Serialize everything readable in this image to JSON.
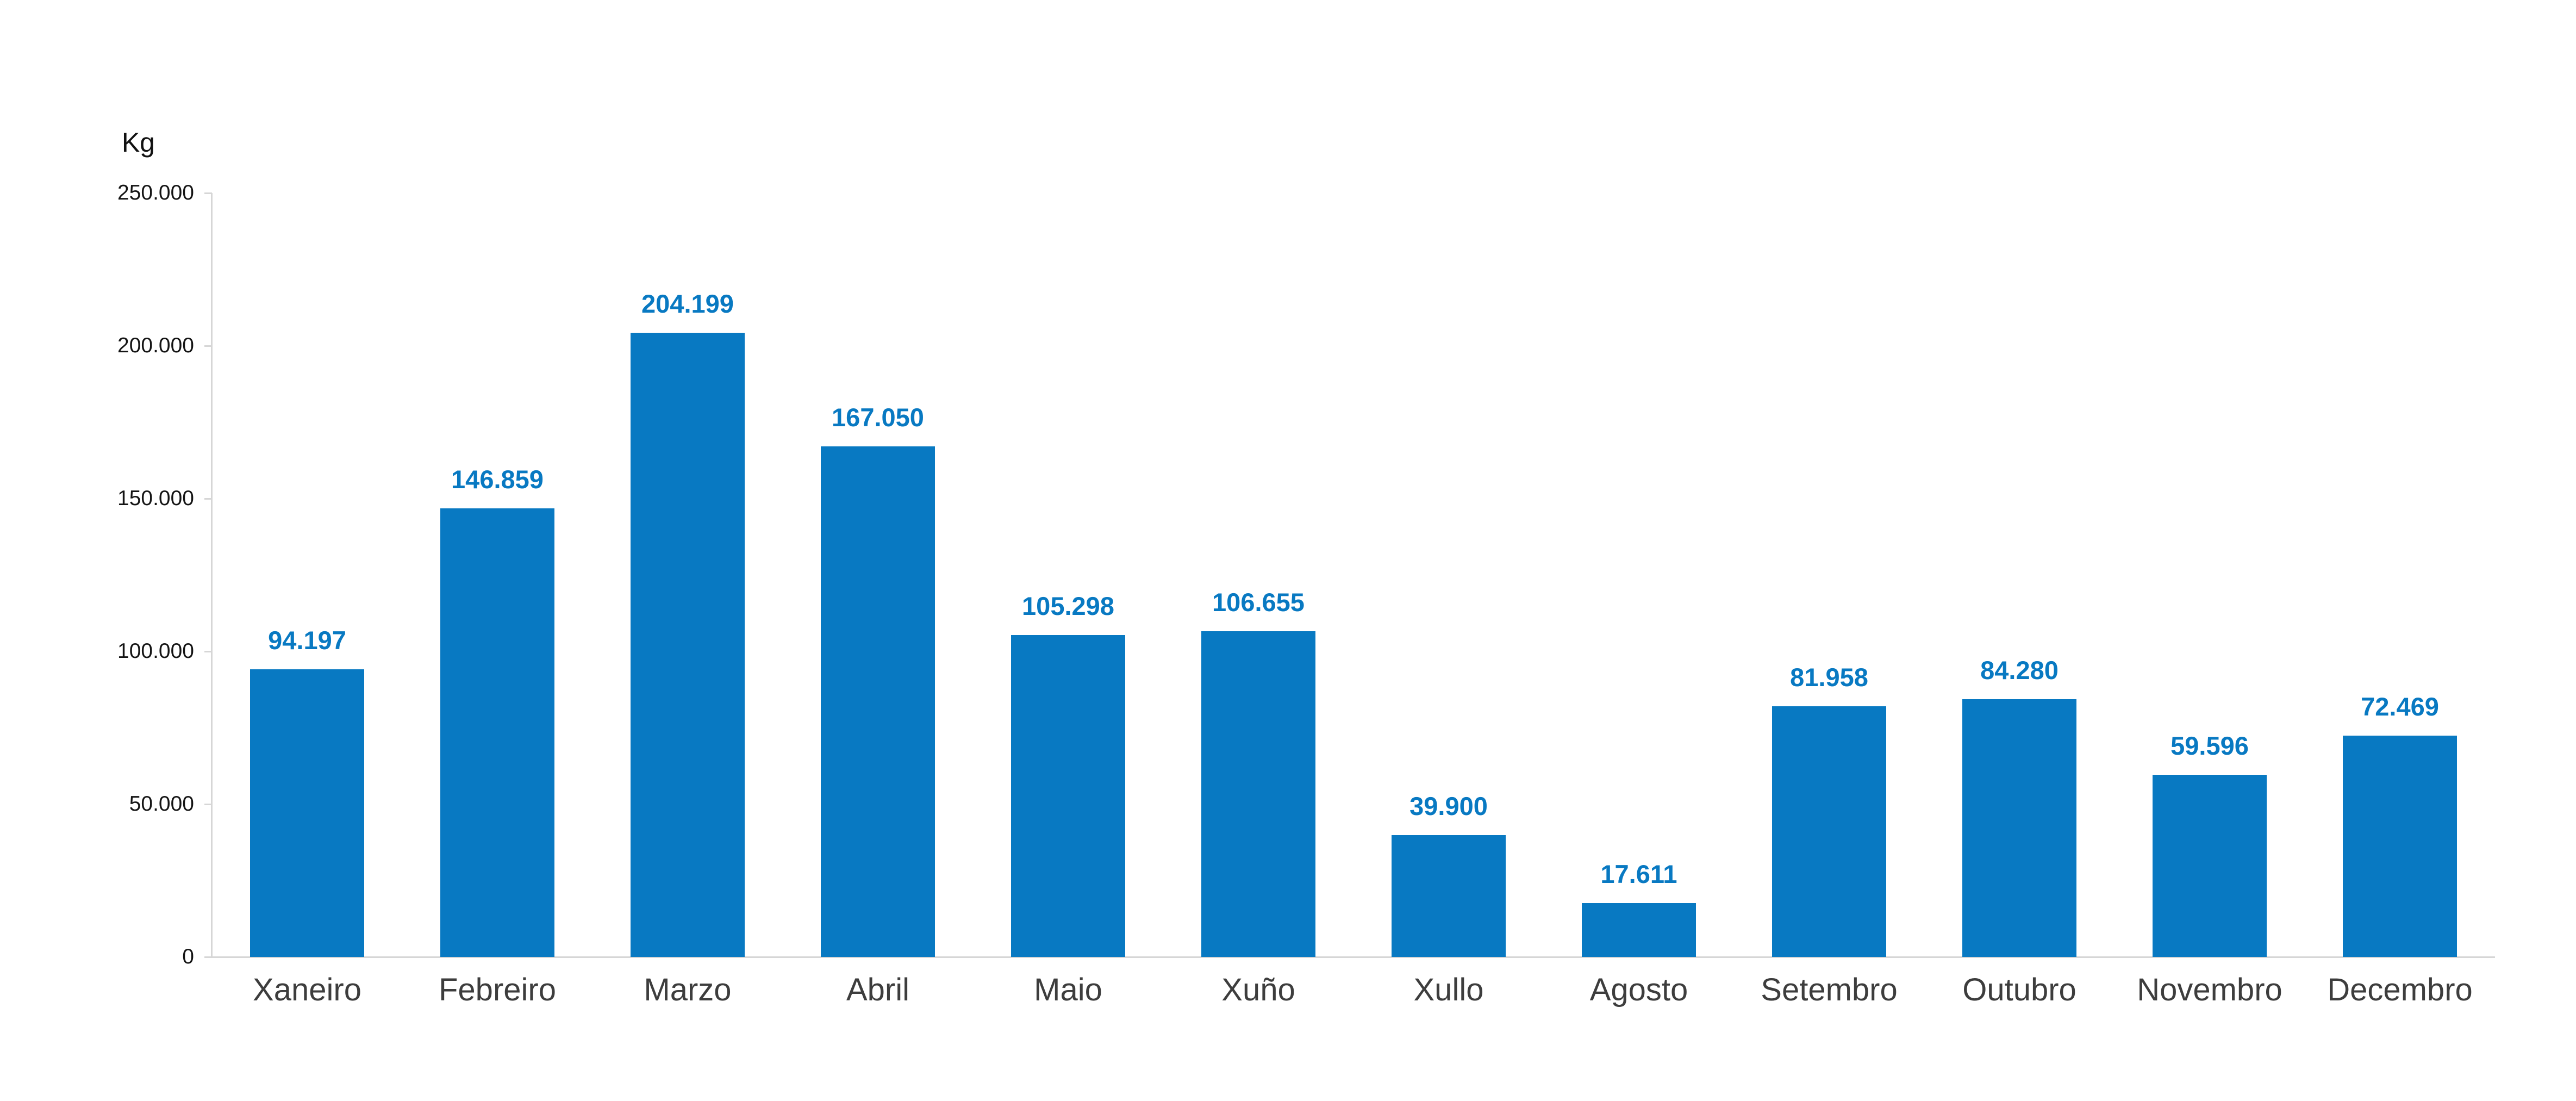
{
  "chart_data": {
    "type": "bar",
    "title": "",
    "xlabel": "",
    "ylabel": "Kg",
    "categories": [
      "Xaneiro",
      "Febreiro",
      "Marzo",
      "Abril",
      "Maio",
      "Xuño",
      "Xullo",
      "Agosto",
      "Setembro",
      "Outubro",
      "Novembro",
      "Decembro"
    ],
    "values": [
      94197,
      146859,
      204199,
      167050,
      105298,
      106655,
      39900,
      17611,
      81958,
      84280,
      59596,
      72469
    ],
    "value_labels": [
      "94.197",
      "146.859",
      "204.199",
      "167.050",
      "105.298",
      "106.655",
      "39.900",
      "17.611",
      "81.958",
      "84.280",
      "59.596",
      "72.469"
    ],
    "y_ticks": [
      "0",
      "50.000",
      "100.000",
      "150.000",
      "200.000",
      "250.000"
    ],
    "ylim": [
      0,
      250000
    ],
    "grid": false,
    "legend_position": "none",
    "colors": {
      "bar": "#0879C2",
      "value_label": "#0879C2",
      "axis": "#D6D6D6",
      "category_label": "#3D3D3D",
      "tick_label": "#141414"
    }
  }
}
